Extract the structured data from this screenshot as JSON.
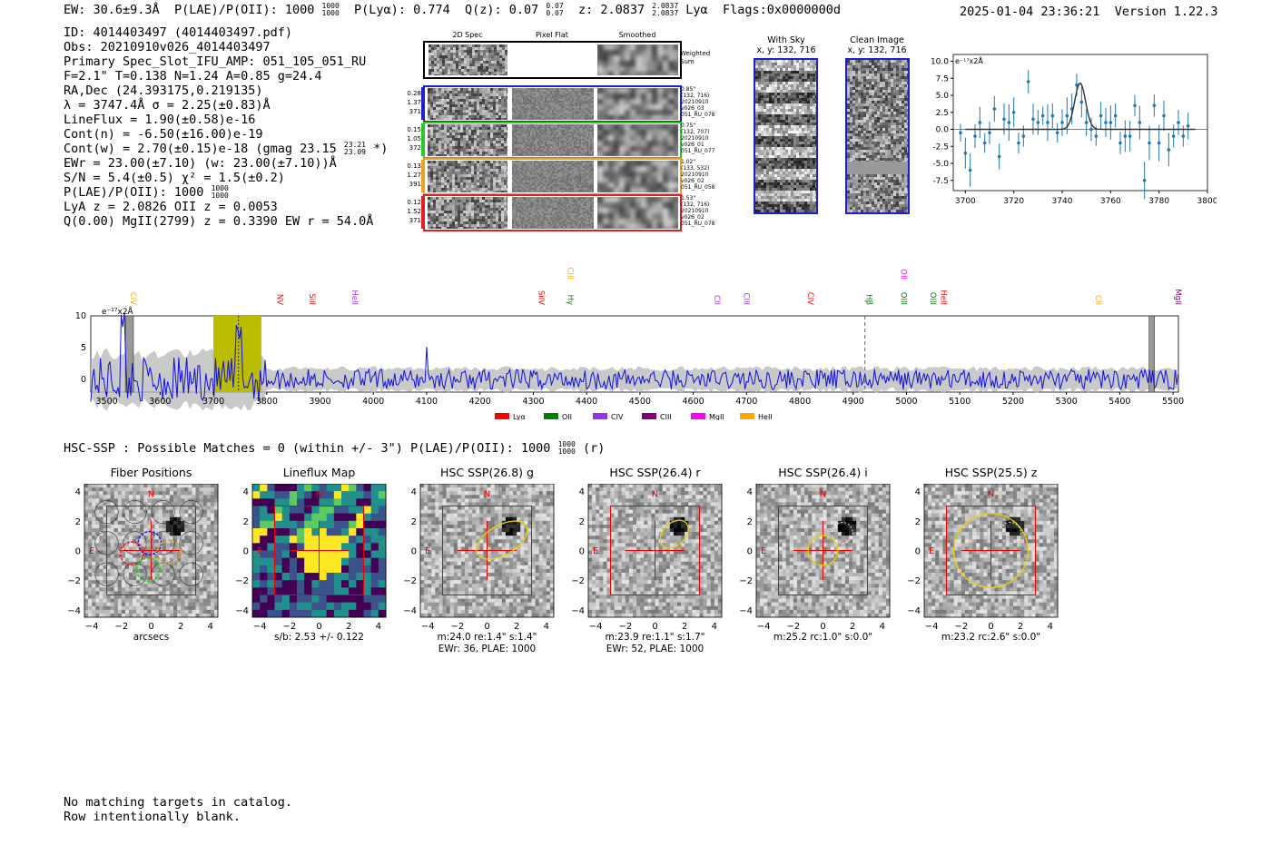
{
  "header": {
    "ew": "EW: 30.6±9.3Å",
    "plae": "P(LAE)/P(OII): 1000",
    "plae_up": "1000",
    "plae_dn": "1000",
    "plya": "P(Lyα): 0.774",
    "q": "Q(z): 0.07",
    "q_up": "0.07",
    "q_dn": "0.07",
    "z": "z: 2.0837",
    "z_up": "2.0837",
    "z_dn": "2.0837",
    "line": "Lyα",
    "flags": "Flags:0x0000000d",
    "timestamp": "2025-01-04 23:36:21",
    "version": "Version 1.22.3"
  },
  "info": {
    "id": "ID: 4014403497 (4014403497.pdf)",
    "obs": "Obs: 20210910v026_4014403497",
    "primary": "Primary Spec_Slot_IFU_AMP: 051_105_051_RU",
    "f": "F=2.1\"  T=0.138  N=1.24  A=0.85  g=24.4",
    "radec": "RA,Dec (24.393175,0.219135)",
    "lambda": "λ = 3747.4Å  σ = 2.25(±0.83)Å",
    "lineflux": "LineFlux = 1.90(±0.58)e-16",
    "contn": "Cont(n) = -6.50(±16.00)e-19",
    "contw": "Cont(w) = 2.70(±0.15)e-18 (gmag 23.15",
    "contw_up": "23.21",
    "contw_dn": "23.09",
    "contw_end": "*)",
    "ewr": "EWr = 23.00(±7.10) (w: 23.00(±7.10))Å",
    "sn": "S/N = 5.4(±0.5)  χ² = 1.5(±0.2)",
    "plae": "P(LAE)/P(OII): 1000",
    "plae_up": "1000",
    "plae_dn": "1000",
    "lya": "LyA z = 2.0826  OII z = 0.0053",
    "q": "Q(0.00) MgII(2799) z = 0.3390  EW r = 54.0Å"
  },
  "cutouts": {
    "headers": [
      "2D Spec",
      "Pixel Flat",
      "Smoothed"
    ],
    "weighted": "Weighted Sum",
    "rows": [
      {
        "left": [
          "0.28",
          "1.37",
          "371"
        ],
        "right": [
          "0.85\"",
          "(132, 716)",
          "20210910",
          "v026_03",
          "051_RU_078"
        ],
        "color": "#1f1fd0"
      },
      {
        "left": [
          "0.15",
          "1.05",
          "372"
        ],
        "right": [
          "0.75\"",
          "(132, 707)",
          "20210910",
          "v026_01",
          "051_RU_077"
        ],
        "color": "#22cc22"
      },
      {
        "left": [
          "0.13",
          "1.27",
          "391"
        ],
        "right": [
          "1.02\"",
          "(133, 532)",
          "20210910",
          "v026_02",
          "051_RU_058"
        ],
        "color": "#f0a020"
      },
      {
        "left": [
          "0.12",
          "1.52",
          "371"
        ],
        "right": [
          "1.53\"",
          "(132, 716)",
          "20210910",
          "v026_02",
          "051_RU_078"
        ],
        "color": "#e02020"
      }
    ],
    "sky": {
      "title": "With Sky",
      "xy": "x, y: 132, 716"
    },
    "clean": {
      "title": "Clean Image",
      "xy": "x, y: 132, 716"
    }
  },
  "chart_data": [
    {
      "type": "scatter",
      "title": "",
      "ylabel_note": "e⁻¹⁷x2Å",
      "xlim": [
        3695,
        3800
      ],
      "ylim": [
        -9,
        11
      ],
      "xticks": [
        "3700",
        "3720",
        "3740",
        "3760",
        "3780",
        "3800"
      ],
      "yticks": [
        "10.0",
        "7.5",
        "5.0",
        "2.5",
        "0.0",
        "-2.5",
        "-5.0",
        "-7.5"
      ],
      "x": [
        3698,
        3700,
        3702,
        3704,
        3706,
        3708,
        3710,
        3712,
        3714,
        3716,
        3718,
        3720,
        3722,
        3724,
        3726,
        3728,
        3730,
        3732,
        3734,
        3736,
        3738,
        3740,
        3742,
        3744,
        3746,
        3748,
        3750,
        3752,
        3754,
        3756,
        3758,
        3760,
        3762,
        3764,
        3766,
        3768,
        3770,
        3772,
        3774,
        3776,
        3778,
        3780,
        3782,
        3784,
        3786,
        3788,
        3790,
        3792
      ],
      "y": [
        -0.5,
        -3.5,
        -6,
        -1,
        1,
        -2,
        -0.5,
        3,
        -4,
        1.5,
        1,
        2.5,
        -2,
        -1,
        7,
        1.5,
        1,
        2,
        1,
        2,
        -0.5,
        1,
        2,
        3,
        6.5,
        4,
        1,
        0,
        -1,
        2,
        1,
        1,
        2,
        -2,
        -1,
        -1,
        3.5,
        1,
        -7.5,
        -2,
        3.5,
        -2,
        2,
        -3,
        -1,
        1,
        -1,
        0.5
      ],
      "fit": "gaussian peak 6.8 at 3747.4, sigma 2.25"
    },
    {
      "type": "line",
      "xlim": [
        3470,
        5510
      ],
      "ylim": [
        -2,
        10
      ],
      "xticks": [
        "3500",
        "3600",
        "3700",
        "3800",
        "3900",
        "4000",
        "4100",
        "4200",
        "4300",
        "4400",
        "4500",
        "4600",
        "4700",
        "4800",
        "4900",
        "5000",
        "5100",
        "5200",
        "5300",
        "5400",
        "5500"
      ],
      "yticks": [
        "10",
        "5",
        "0"
      ],
      "ylabel_note": "e⁻¹⁷x2Å",
      "legend": [
        {
          "name": "Lyα",
          "color": "#ff0000"
        },
        {
          "name": "OII",
          "color": "#008000"
        },
        {
          "name": "CIV",
          "color": "#9932ee"
        },
        {
          "name": "CIII",
          "color": "#800080"
        },
        {
          "name": "MgII",
          "color": "#ff00ff"
        },
        {
          "name": "HeII",
          "color": "#ffa500"
        }
      ],
      "lines": [
        {
          "name": "CIV",
          "x": 3540,
          "color": "#ffa500",
          "level": 1
        },
        {
          "name": "NV",
          "x": 3815,
          "color": "#ff0000",
          "level": 1
        },
        {
          "name": "SiII",
          "x": 3875,
          "color": "#ff0000",
          "level": 1
        },
        {
          "name": "HeII",
          "x": 3955,
          "color": "#9932ee",
          "level": 1
        },
        {
          "name": "SiIV",
          "x": 4305,
          "color": "#ff0000",
          "level": 1
        },
        {
          "name": "CIII",
          "x": 4360,
          "color": "#ffa500",
          "level": 2
        },
        {
          "name": "Hγ",
          "x": 4360,
          "color": "#008000",
          "level": 1
        },
        {
          "name": "CII",
          "x": 4635,
          "color": "#9932ee",
          "level": 1
        },
        {
          "name": "CIII",
          "x": 4690,
          "color": "#9932ee",
          "level": 1
        },
        {
          "name": "CIV",
          "x": 4810,
          "color": "#ff0000",
          "level": 1
        },
        {
          "name": "Hβ",
          "x": 4920,
          "color": "#008000",
          "level": 1
        },
        {
          "name": "OII",
          "x": 4985,
          "color": "#ff00ff",
          "level": 2
        },
        {
          "name": "OIII",
          "x": 4985,
          "color": "#008000",
          "level": 1
        },
        {
          "name": "OIII",
          "x": 5040,
          "color": "#008000",
          "level": 1
        },
        {
          "name": "HeII",
          "x": 5060,
          "color": "#ff0000",
          "level": 1
        },
        {
          "name": "CII",
          "x": 5350,
          "color": "#ffa500",
          "level": 1
        },
        {
          "name": "MgII",
          "x": 5500,
          "color": "#800080",
          "level": 1
        }
      ]
    }
  ],
  "hsc": {
    "summary": "HSC-SSP : Possible Matches = 0 (within +/- 3\")  P(LAE)/P(OII): 1000",
    "sup_up": "1000",
    "sup_dn": "1000",
    "sup_end": "(r)"
  },
  "panels": [
    {
      "title": "Fiber Positions",
      "xlabel": "arcsecs",
      "cap2": "",
      "cap3": ""
    },
    {
      "title": "Lineflux Map",
      "xlabel": "s/b: 2.53 +/- 0.122",
      "cap2": "",
      "cap3": ""
    },
    {
      "title": "HSC SSP(26.8) g",
      "xlabel": "m:24.0  re:1.4\"  s:1.4\"",
      "cap2": "EWr: 36, PLAE: 1000",
      "cap3": ""
    },
    {
      "title": "HSC SSP(26.4) r",
      "xlabel": "m:23.9  re:1.1\"  s:1.7\"",
      "cap2": "EWr: 52, PLAE: 1000",
      "cap3": ""
    },
    {
      "title": "HSC SSP(26.4) i",
      "xlabel": "m:25.2 rc:1.0\"  s:0.0\"",
      "cap2": "",
      "cap3": ""
    },
    {
      "title": "HSC SSP(25.5) z",
      "xlabel": "m:23.2 rc:2.6\"  s:0.0\"",
      "cap2": "",
      "cap3": ""
    }
  ],
  "panel_ticks": {
    "x": [
      "−4",
      "−2",
      "0",
      "2",
      "4"
    ],
    "y": [
      "4",
      "2",
      "0",
      "−2",
      "−4"
    ],
    "n": "N",
    "e": "E"
  },
  "footer": {
    "line1": "No matching targets in catalog.",
    "line2": "Row intentionally blank."
  }
}
